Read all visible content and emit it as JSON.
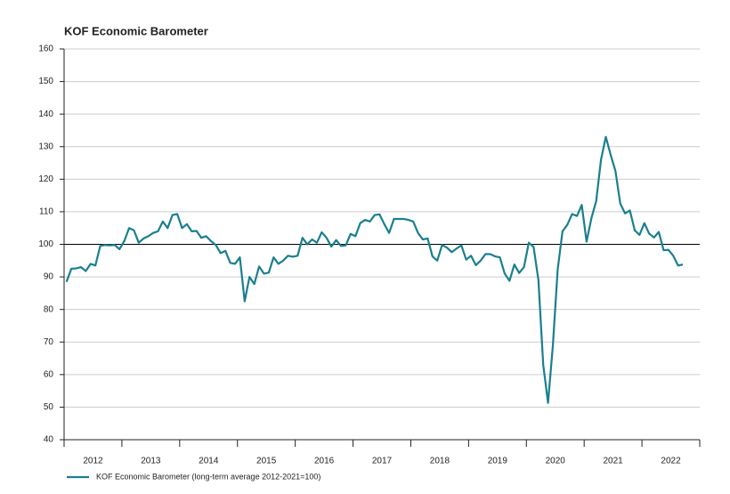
{
  "chart_data": {
    "type": "line",
    "title": "KOF Economic Barometer",
    "categories": [
      null,
      null,
      null,
      null,
      null,
      null,
      "2012",
      null,
      null,
      null,
      null,
      null,
      null,
      null,
      null,
      null,
      null,
      null,
      "2013",
      null,
      null,
      null,
      null,
      null,
      null,
      null,
      null,
      null,
      null,
      null,
      "2014",
      null,
      null,
      null,
      null,
      null,
      null,
      null,
      null,
      null,
      null,
      null,
      "2015",
      null,
      null,
      null,
      null,
      null,
      null,
      null,
      null,
      null,
      null,
      null,
      "2016",
      null,
      null,
      null,
      null,
      null,
      null,
      null,
      null,
      null,
      null,
      null,
      "2017",
      null,
      null,
      null,
      null,
      null,
      null,
      null,
      null,
      null,
      null,
      null,
      "2018",
      null,
      null,
      null,
      null,
      null,
      null,
      null,
      null,
      null,
      null,
      null,
      "2019",
      null,
      null,
      null,
      null,
      null,
      null,
      null,
      null,
      null,
      null,
      null,
      "2020",
      null,
      null,
      null,
      null,
      null,
      null,
      null,
      null,
      null,
      null,
      null,
      "2021",
      null,
      null,
      null,
      null,
      null,
      null,
      null,
      null,
      null,
      null,
      null,
      "2022",
      null,
      null
    ],
    "series": [
      {
        "name": "KOF Economic Barometer (long-term average 2012-2021=100)",
        "color": "#1a7f8e",
        "values": [
          88.5,
          92.5,
          92.6,
          93.0,
          91.8,
          94.0,
          93.5,
          99.5,
          99.8,
          99.7,
          99.8,
          98.5,
          101,
          105,
          104.3,
          100.5,
          101.8,
          102.5,
          103.5,
          104,
          107,
          105,
          109,
          109.3,
          105,
          106.2,
          104,
          104.1,
          102,
          102.5,
          101,
          99.8,
          97.3,
          98,
          94.3,
          94,
          96,
          82.5,
          90,
          87.8,
          93.2,
          91,
          91.3,
          96,
          94,
          95,
          96.5,
          96.2,
          96.5,
          102,
          100,
          101.5,
          100.5,
          103.7,
          102,
          99.3,
          101.3,
          99.5,
          99.7,
          103.2,
          102.5,
          106.5,
          107.5,
          107,
          109,
          109.2,
          106.2,
          103.5,
          107.8,
          107.8,
          107.8,
          107.5,
          107,
          103.5,
          101.5,
          101.8,
          96.3,
          95,
          99.8,
          99,
          97.6,
          98.7,
          99.7,
          95.3,
          96.5,
          93.6,
          95,
          97,
          97,
          96.3,
          96,
          91,
          88.8,
          93.8,
          91.2,
          93,
          100.5,
          99.2,
          89,
          63,
          51.3,
          68.9,
          92.2,
          104,
          106,
          109.3,
          108.7,
          112.1,
          100.8,
          108,
          113.3,
          126,
          133,
          127.5,
          122.5,
          112.5,
          109.5,
          110.4,
          104.3,
          102.9,
          106.5,
          103.3,
          102.1,
          103.8,
          98.2,
          98.3,
          96.5,
          93.5,
          93.8
        ]
      }
    ],
    "ylim": [
      40,
      160
    ],
    "yticks": [
      40,
      50,
      60,
      70,
      80,
      90,
      100,
      110,
      120,
      130,
      140,
      150,
      160
    ],
    "reference_line": 100,
    "grid": true,
    "legend": "bottom-left"
  }
}
